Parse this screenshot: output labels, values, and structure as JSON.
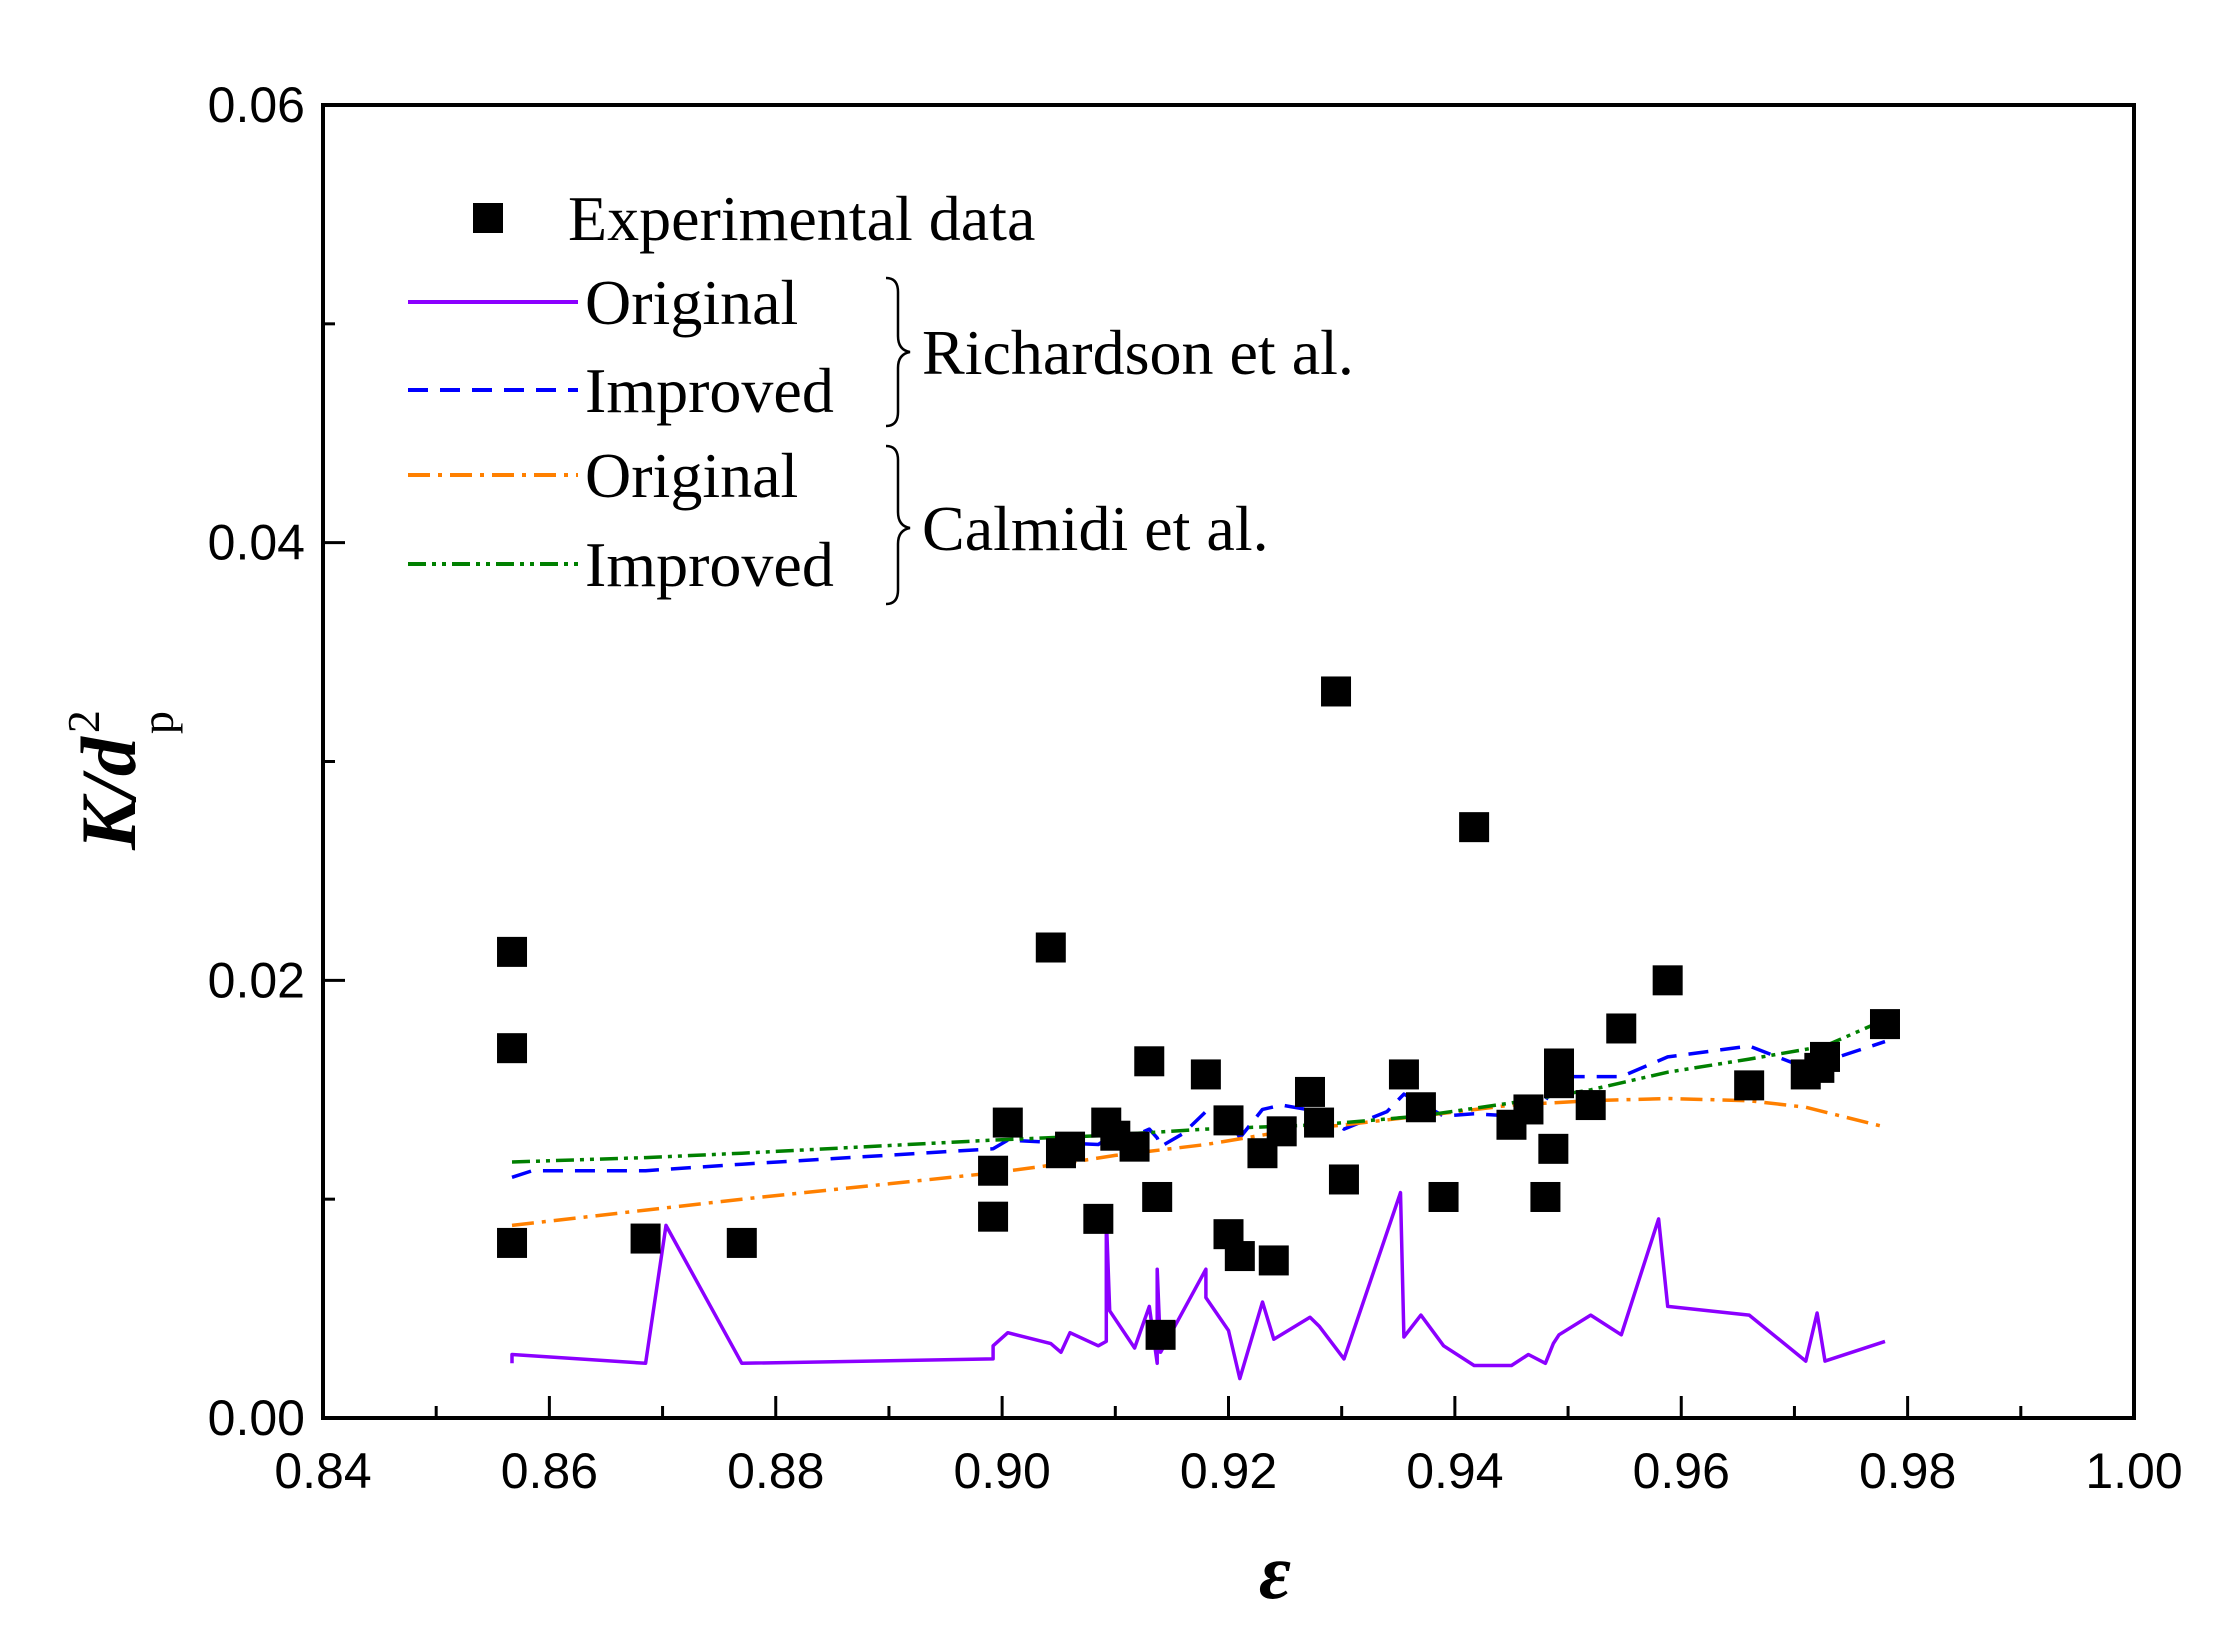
{
  "chart_data": {
    "type": "scatter",
    "title": "",
    "xlabel": "ε",
    "ylabel": {
      "main": "K/d",
      "superscript": "2",
      "subscript": "p"
    },
    "xlim": [
      0.84,
      1.0
    ],
    "ylim": [
      0.0,
      0.06
    ],
    "xticks": [
      0.84,
      0.86,
      0.88,
      0.9,
      0.92,
      0.94,
      0.96,
      0.98,
      1.0
    ],
    "xtick_labels": [
      "0.84",
      "0.86",
      "0.88",
      "0.90",
      "0.92",
      "0.94",
      "0.96",
      "0.98",
      "1.00"
    ],
    "yticks": [
      0.0,
      0.02,
      0.04,
      0.06
    ],
    "ytick_labels": [
      "0.00",
      "0.02",
      "0.04",
      "0.06"
    ],
    "grid": false,
    "legend_position": "top-left",
    "legend": {
      "experimental": "Experimental data",
      "groups": [
        {
          "name": "Richardson et al.",
          "entries": [
            "Original",
            "Improved"
          ]
        },
        {
          "name": "Calmidi et al.",
          "entries": [
            "Original",
            "Improved"
          ]
        }
      ]
    },
    "colors": {
      "experimental": "#000000",
      "richardson_original": "#8b00ff",
      "richardson_improved": "#0000ff",
      "calmidi_original": "#ff8000",
      "calmidi_improved": "#008000"
    },
    "series": [
      {
        "name": "Experimental data",
        "style": "square-marker",
        "points": [
          [
            0.8567,
            0.0213
          ],
          [
            0.8567,
            0.0169
          ],
          [
            0.8567,
            0.008
          ],
          [
            0.8685,
            0.0082
          ],
          [
            0.877,
            0.008
          ],
          [
            0.8992,
            0.0113
          ],
          [
            0.8992,
            0.0092
          ],
          [
            0.9005,
            0.0135
          ],
          [
            0.9043,
            0.0215
          ],
          [
            0.9052,
            0.0121
          ],
          [
            0.906,
            0.0124
          ],
          [
            0.9085,
            0.0091
          ],
          [
            0.9092,
            0.0135
          ],
          [
            0.91,
            0.0129
          ],
          [
            0.9117,
            0.0124
          ],
          [
            0.913,
            0.0163
          ],
          [
            0.9137,
            0.0101
          ],
          [
            0.914,
            0.0038
          ],
          [
            0.918,
            0.0157
          ],
          [
            0.92,
            0.0136
          ],
          [
            0.92,
            0.0084
          ],
          [
            0.921,
            0.0074
          ],
          [
            0.923,
            0.0121
          ],
          [
            0.924,
            0.0072
          ],
          [
            0.9247,
            0.0131
          ],
          [
            0.9272,
            0.0149
          ],
          [
            0.928,
            0.0135
          ],
          [
            0.9295,
            0.0332
          ],
          [
            0.9302,
            0.0109
          ],
          [
            0.9355,
            0.0157
          ],
          [
            0.937,
            0.0142
          ],
          [
            0.939,
            0.0101
          ],
          [
            0.9417,
            0.027
          ],
          [
            0.945,
            0.0134
          ],
          [
            0.9465,
            0.0141
          ],
          [
            0.948,
            0.0101
          ],
          [
            0.9487,
            0.0123
          ],
          [
            0.9492,
            0.0153
          ],
          [
            0.9492,
            0.0162
          ],
          [
            0.952,
            0.0143
          ],
          [
            0.9547,
            0.0178
          ],
          [
            0.9588,
            0.02
          ],
          [
            0.966,
            0.0152
          ],
          [
            0.971,
            0.0157
          ],
          [
            0.9722,
            0.016
          ],
          [
            0.9727,
            0.0165
          ],
          [
            0.978,
            0.018
          ]
        ]
      },
      {
        "name": "Richardson et al. Original",
        "style": "solid",
        "points": [
          [
            0.8567,
            0.0025
          ],
          [
            0.8567,
            0.0029
          ],
          [
            0.8685,
            0.0025
          ],
          [
            0.8703,
            0.0088
          ],
          [
            0.877,
            0.0025
          ],
          [
            0.8992,
            0.0027
          ],
          [
            0.8992,
            0.0033
          ],
          [
            0.9005,
            0.0039
          ],
          [
            0.9043,
            0.0034
          ],
          [
            0.9052,
            0.003
          ],
          [
            0.906,
            0.0039
          ],
          [
            0.9085,
            0.0033
          ],
          [
            0.9092,
            0.0035
          ],
          [
            0.9092,
            0.0092
          ],
          [
            0.9095,
            0.0049
          ],
          [
            0.9117,
            0.0032
          ],
          [
            0.913,
            0.0051
          ],
          [
            0.9137,
            0.0025
          ],
          [
            0.9137,
            0.0068
          ],
          [
            0.914,
            0.003
          ],
          [
            0.918,
            0.0068
          ],
          [
            0.918,
            0.0055
          ],
          [
            0.92,
            0.004
          ],
          [
            0.921,
            0.0018
          ],
          [
            0.923,
            0.0053
          ],
          [
            0.924,
            0.0036
          ],
          [
            0.9272,
            0.0046
          ],
          [
            0.928,
            0.0042
          ],
          [
            0.9302,
            0.0027
          ],
          [
            0.9352,
            0.0103
          ],
          [
            0.9355,
            0.0037
          ],
          [
            0.937,
            0.0047
          ],
          [
            0.939,
            0.0033
          ],
          [
            0.9417,
            0.0024
          ],
          [
            0.945,
            0.0024
          ],
          [
            0.9465,
            0.0029
          ],
          [
            0.948,
            0.0025
          ],
          [
            0.9487,
            0.0034
          ],
          [
            0.9492,
            0.0038
          ],
          [
            0.952,
            0.0047
          ],
          [
            0.9547,
            0.0038
          ],
          [
            0.958,
            0.0091
          ],
          [
            0.9588,
            0.0051
          ],
          [
            0.966,
            0.0047
          ],
          [
            0.971,
            0.0026
          ],
          [
            0.972,
            0.0048
          ],
          [
            0.9727,
            0.0026
          ],
          [
            0.978,
            0.0035
          ]
        ]
      },
      {
        "name": "Richardson et al. Improved",
        "style": "dashed",
        "points": [
          [
            0.8567,
            0.011
          ],
          [
            0.8585,
            0.0113
          ],
          [
            0.8685,
            0.0113
          ],
          [
            0.877,
            0.0116
          ],
          [
            0.8992,
            0.0123
          ],
          [
            0.9005,
            0.0127
          ],
          [
            0.9043,
            0.0126
          ],
          [
            0.9085,
            0.0125
          ],
          [
            0.91,
            0.013
          ],
          [
            0.9117,
            0.0129
          ],
          [
            0.913,
            0.0132
          ],
          [
            0.9137,
            0.0128
          ],
          [
            0.914,
            0.0124
          ],
          [
            0.916,
            0.013
          ],
          [
            0.918,
            0.014
          ],
          [
            0.92,
            0.0138
          ],
          [
            0.921,
            0.0128
          ],
          [
            0.923,
            0.0141
          ],
          [
            0.9247,
            0.0143
          ],
          [
            0.928,
            0.014
          ],
          [
            0.9302,
            0.0132
          ],
          [
            0.934,
            0.014
          ],
          [
            0.9355,
            0.0148
          ],
          [
            0.939,
            0.0138
          ],
          [
            0.9417,
            0.0139
          ],
          [
            0.945,
            0.0138
          ],
          [
            0.948,
            0.0145
          ],
          [
            0.9492,
            0.0156
          ],
          [
            0.9547,
            0.0156
          ],
          [
            0.9588,
            0.0165
          ],
          [
            0.966,
            0.017
          ],
          [
            0.971,
            0.016
          ],
          [
            0.9727,
            0.0163
          ],
          [
            0.978,
            0.0172
          ]
        ]
      },
      {
        "name": "Calmidi et al. Original",
        "style": "dash-dot",
        "points": [
          [
            0.8567,
            0.0088
          ],
          [
            0.8685,
            0.0095
          ],
          [
            0.877,
            0.01
          ],
          [
            0.8992,
            0.0112
          ],
          [
            0.905,
            0.0116
          ],
          [
            0.91,
            0.012
          ],
          [
            0.918,
            0.0125
          ],
          [
            0.925,
            0.0131
          ],
          [
            0.9302,
            0.0134
          ],
          [
            0.937,
            0.0138
          ],
          [
            0.945,
            0.0143
          ],
          [
            0.952,
            0.0145
          ],
          [
            0.9588,
            0.0146
          ],
          [
            0.966,
            0.0145
          ],
          [
            0.971,
            0.0142
          ],
          [
            0.978,
            0.0133
          ]
        ]
      },
      {
        "name": "Calmidi et al. Improved",
        "style": "dash-dot-dot",
        "points": [
          [
            0.8567,
            0.0117
          ],
          [
            0.8685,
            0.0119
          ],
          [
            0.877,
            0.0121
          ],
          [
            0.8992,
            0.0127
          ],
          [
            0.9085,
            0.0129
          ],
          [
            0.918,
            0.0132
          ],
          [
            0.928,
            0.0134
          ],
          [
            0.937,
            0.0138
          ],
          [
            0.945,
            0.0144
          ],
          [
            0.952,
            0.015
          ],
          [
            0.9588,
            0.0158
          ],
          [
            0.966,
            0.0164
          ],
          [
            0.9727,
            0.017
          ],
          [
            0.978,
            0.0182
          ]
        ]
      }
    ]
  }
}
